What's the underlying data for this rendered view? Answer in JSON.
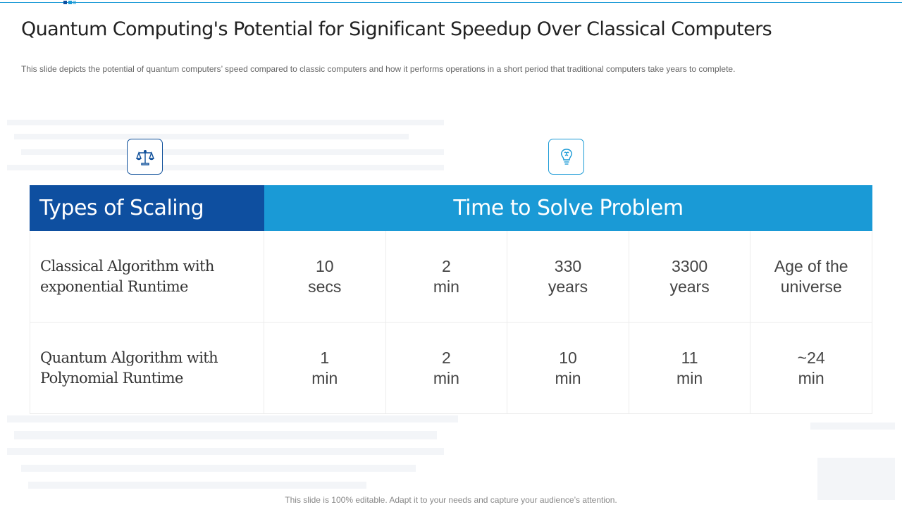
{
  "title": "Quantum Computing's Potential for Significant Speedup Over Classical Computers",
  "subtitle": "This slide depicts the potential of quantum computers’ speed compared to classic computers and how it performs operations in a short period that traditional computers take years to complete.",
  "icons": {
    "left": "balance-scale-icon",
    "right": "lightbulb-brain-icon"
  },
  "colors": {
    "header_left": "#0e4fa0",
    "header_right": "#1a9ad6",
    "accent_line": "#1a9ad6"
  },
  "table": {
    "header_left": "Types of Scaling",
    "header_right": "Time to Solve Problem",
    "rows": [
      {
        "label": "Classical Algorithm with exponential Runtime",
        "values": [
          "10\nsecs",
          "2\nmin",
          "330\nyears",
          "3300\nyears",
          "Age of the\nuniverse"
        ]
      },
      {
        "label": "Quantum Algorithm with Polynomial Runtime",
        "values": [
          "1\nmin",
          "2\nmin",
          "10\nmin",
          "11\nmin",
          "~24\nmin"
        ]
      }
    ]
  },
  "footer": "This slide is 100% editable. Adapt it to your needs and capture your audience’s attention."
}
